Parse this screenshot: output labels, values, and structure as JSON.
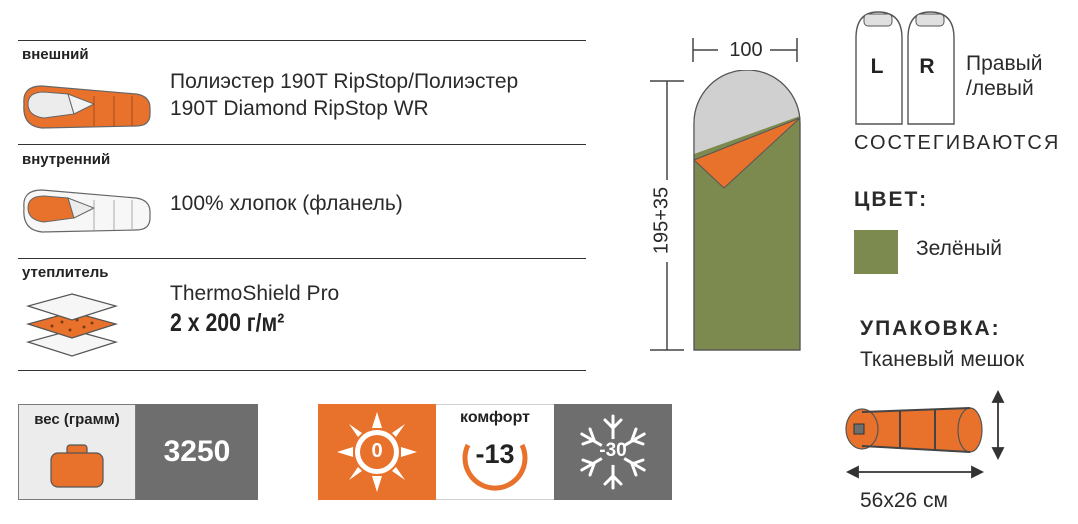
{
  "materials": {
    "outer": {
      "title": "внешний",
      "line1": "Полиэстер 190T RipStop/Полиэстер",
      "line2": "190T Diamond RipStop WR"
    },
    "inner": {
      "title": "внутренний",
      "line1": "100% хлопок (фланель)"
    },
    "insulation": {
      "title": "утеплитель",
      "line1": "ThermoShield Pro",
      "line2": "2 x 200 г/м²"
    }
  },
  "weight": {
    "label": "вес (грамм)",
    "value": "3250"
  },
  "temperature": {
    "comfort_label": "комфорт",
    "warm": "0",
    "comfort": "-13",
    "extreme": "-30"
  },
  "dimensions": {
    "width": "100",
    "length": "195+35",
    "pack": "56x26 см"
  },
  "zip": {
    "left": "L",
    "right": "R",
    "label_line1": "Правый",
    "label_line2": "/левый",
    "caption": "СОСТЕГИВАЮТСЯ"
  },
  "color": {
    "heading": "ЦВЕТ:",
    "name": "Зелёный",
    "swatch": "#7d8a4f"
  },
  "packing": {
    "heading": "УПАКОВКА:",
    "bag": "Тканевый мешок"
  },
  "colors": {
    "orange": "#e8722c",
    "olive": "#7d8a4f",
    "grey": "#d0d0d0",
    "dark": "#6e6e6e"
  }
}
